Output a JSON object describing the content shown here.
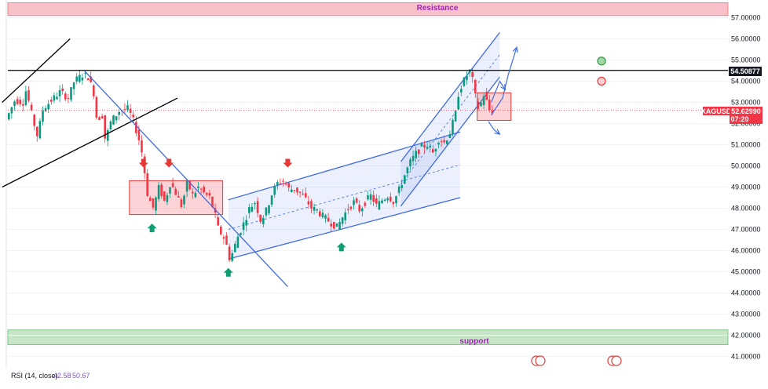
{
  "chart_data": {
    "type": "candlestick",
    "symbol": "XAGUSD",
    "ylim": [
      40.5,
      57.7
    ],
    "y_ticks": [
      "57.00000",
      "56.00000",
      "55.00000",
      "54.00000",
      "53.00000",
      "52.00000",
      "51.00000",
      "50.00000",
      "49.00000",
      "48.00000",
      "47.00000",
      "46.00000",
      "45.00000",
      "44.00000",
      "43.00000",
      "42.00000",
      "41.00000"
    ],
    "price_path": [
      [
        0,
        52.2
      ],
      [
        3,
        53.1
      ],
      [
        6,
        53.0
      ],
      [
        7,
        53.6
      ],
      [
        9,
        52.4
      ],
      [
        11,
        51.4
      ],
      [
        13,
        52.7
      ],
      [
        16,
        53.1
      ],
      [
        19,
        53.5
      ],
      [
        22,
        53.2
      ],
      [
        24,
        54.0
      ],
      [
        27,
        54.3
      ],
      [
        29,
        54.2
      ],
      [
        31,
        53.4
      ],
      [
        32,
        52.2
      ],
      [
        34,
        52.4
      ],
      [
        35,
        51.2
      ],
      [
        37,
        52.1
      ],
      [
        40,
        52.6
      ],
      [
        43,
        52.7
      ],
      [
        45,
        52.1
      ],
      [
        47,
        51.2
      ],
      [
        48,
        50.6
      ],
      [
        49,
        49.6
      ],
      [
        50,
        48.6
      ],
      [
        52,
        48.0
      ],
      [
        54,
        49.0
      ],
      [
        56,
        48.3
      ],
      [
        58,
        49.2
      ],
      [
        60,
        48.7
      ],
      [
        62,
        48.1
      ],
      [
        64,
        49.2
      ],
      [
        66,
        48.6
      ],
      [
        68,
        49.0
      ],
      [
        70,
        48.7
      ],
      [
        72,
        48.5
      ],
      [
        74,
        47.6
      ],
      [
        75,
        47.0
      ],
      [
        77,
        46.6
      ],
      [
        78,
        46.2
      ],
      [
        79,
        45.6
      ],
      [
        80,
        45.9
      ],
      [
        82,
        46.7
      ],
      [
        84,
        47.3
      ],
      [
        86,
        48.0
      ],
      [
        88,
        48.3
      ],
      [
        90,
        47.4
      ],
      [
        92,
        47.9
      ],
      [
        94,
        48.7
      ],
      [
        96,
        49.2
      ],
      [
        98,
        49.3
      ],
      [
        100,
        48.9
      ],
      [
        102,
        48.9
      ],
      [
        104,
        48.7
      ],
      [
        106,
        48.4
      ],
      [
        108,
        48.0
      ],
      [
        110,
        47.9
      ],
      [
        112,
        47.6
      ],
      [
        114,
        47.4
      ],
      [
        116,
        47.2
      ],
      [
        117,
        47.1
      ],
      [
        119,
        47.6
      ],
      [
        121,
        48.0
      ],
      [
        123,
        48.3
      ],
      [
        125,
        47.9
      ],
      [
        127,
        48.3
      ],
      [
        129,
        48.6
      ],
      [
        131,
        48.1
      ],
      [
        133,
        48.4
      ],
      [
        135,
        48.6
      ],
      [
        137,
        48.3
      ],
      [
        139,
        48.9
      ],
      [
        141,
        49.6
      ],
      [
        143,
        50.2
      ],
      [
        145,
        50.6
      ],
      [
        147,
        50.9
      ],
      [
        149,
        51.0
      ],
      [
        151,
        50.6
      ],
      [
        153,
        51.3
      ],
      [
        155,
        51.1
      ],
      [
        157,
        51.6
      ],
      [
        159,
        52.5
      ],
      [
        160,
        53.5
      ],
      [
        161,
        53.8
      ],
      [
        163,
        54.3
      ],
      [
        164,
        54.5
      ],
      [
        165,
        54.0
      ],
      [
        166,
        53.2
      ],
      [
        167,
        52.7
      ],
      [
        168,
        53.0
      ],
      [
        169,
        53.4
      ],
      [
        170,
        53.0
      ],
      [
        171,
        52.6
      ]
    ],
    "horizontal_lines": [
      {
        "label": "54.50877",
        "price": 54.50877
      },
      {
        "label": "52.62990",
        "price": 52.6299
      }
    ],
    "zones": [
      {
        "label": "Resistance",
        "from": 57.1,
        "to": 57.7,
        "color": "#f8c0c8"
      },
      {
        "label": "support",
        "from": 41.55,
        "to": 42.25,
        "color": "#c7e5c7"
      }
    ],
    "rectangles": [
      {
        "x0": 43,
        "x1": 76,
        "from": 47.7,
        "to": 49.3
      },
      {
        "x0": 166,
        "x1": 178,
        "from": 52.15,
        "to": 53.45
      }
    ],
    "trendlines": [
      {
        "color": "#000000",
        "points": [
          [
            -2,
            53.0
          ],
          [
            22,
            56.0
          ]
        ]
      },
      {
        "color": "#000000",
        "points": [
          [
            -2,
            49.0
          ],
          [
            60,
            53.2
          ]
        ]
      },
      {
        "color": "#000000",
        "points": [
          [
            -2,
            54.5
          ],
          [
            245,
            54.5
          ]
        ]
      },
      {
        "color": "#3f6be0",
        "points": [
          [
            27,
            54.5
          ],
          [
            99,
            44.3
          ]
        ]
      }
    ],
    "channels": [
      {
        "upper": [
          [
            78,
            48.4
          ],
          [
            160,
            51.6
          ]
        ],
        "lower": [
          [
            78,
            45.6
          ],
          [
            160,
            48.5
          ]
        ],
        "mid": [
          [
            78,
            47.0
          ],
          [
            160,
            50.05
          ]
        ]
      },
      {
        "upper": [
          [
            139,
            50.2
          ],
          [
            174,
            56.3
          ]
        ],
        "lower": [
          [
            139,
            48.1
          ],
          [
            174,
            54.2
          ]
        ],
        "mid": [
          [
            139,
            49.15
          ],
          [
            174,
            55.25
          ]
        ]
      }
    ],
    "markers": [
      {
        "shape": "arrow-down",
        "x": 48,
        "price": 50.0,
        "color": "#e53935"
      },
      {
        "shape": "arrow-down",
        "x": 57,
        "price": 50.0,
        "color": "#e53935"
      },
      {
        "shape": "arrow-down",
        "x": 99,
        "price": 50.0,
        "color": "#e53935"
      },
      {
        "shape": "arrow-up",
        "x": 51,
        "price": 47.2,
        "color": "#0f9d72"
      },
      {
        "shape": "arrow-up",
        "x": 78,
        "price": 45.1,
        "color": "#0f9d72"
      },
      {
        "shape": "arrow-up",
        "x": 118,
        "price": 46.3,
        "color": "#0f9d72"
      }
    ],
    "projection_arrows": [
      {
        "points": [
          [
            171,
            52.4
          ],
          [
            175,
            53.2
          ],
          [
            177,
            54.3
          ],
          [
            180,
            55.6
          ]
        ]
      },
      {
        "points": [
          [
            171,
            53.0
          ],
          [
            174,
            54.0
          ],
          [
            176,
            53.6
          ]
        ]
      },
      {
        "points": [
          [
            170,
            52.1
          ],
          [
            172,
            51.7
          ],
          [
            174,
            51.5
          ]
        ]
      }
    ],
    "event_circles": [
      {
        "x": 191,
        "price": 54.95,
        "color": "#2e9e3e"
      },
      {
        "x": 191,
        "price": 54.0,
        "color": "#e53935"
      }
    ]
  },
  "zones": {
    "resistance_label": "Resistance",
    "support_label": "support"
  },
  "last_price": {
    "symbol": "XAGUSD",
    "price": "52.62990",
    "countdown": "07:20"
  },
  "level_tag": "54.50877",
  "rsi": {
    "label": "RSI (14, close)",
    "value1": "42.58",
    "value2": "50.67"
  },
  "colors": {
    "up": "#089981",
    "down": "#f23645",
    "channel": "#3f6be0",
    "price_tag": "#f23645"
  }
}
